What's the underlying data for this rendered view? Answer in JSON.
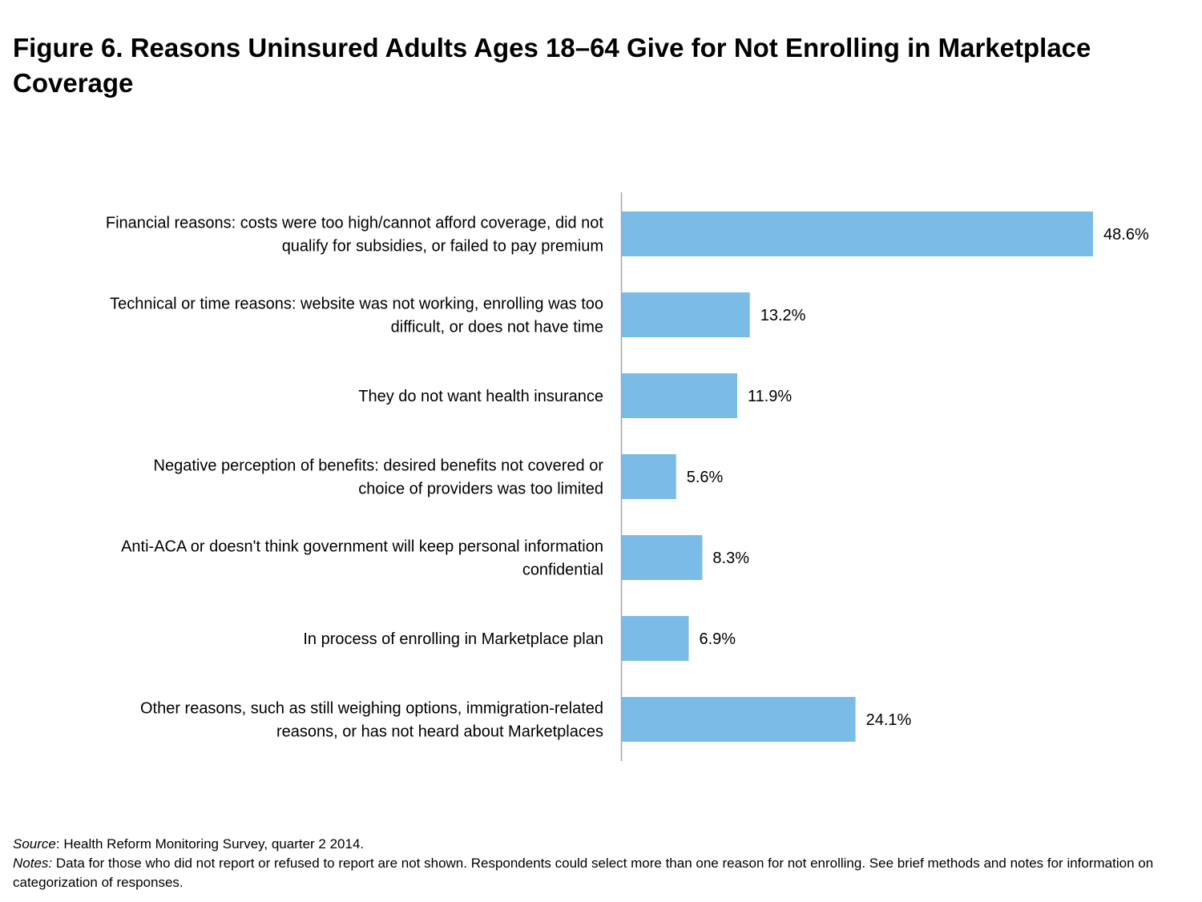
{
  "chart_data": {
    "type": "bar",
    "orientation": "horizontal",
    "title": "Figure 6. Reasons Uninsured Adults Ages 18–64 Give for Not Enrolling in Marketplace Coverage",
    "categories": [
      [
        "Financial reasons: costs were too high/cannot afford coverage, did not",
        "qualify for subsidies, or failed to pay premium"
      ],
      [
        "Technical or time reasons: website was not working, enrolling was too",
        "difficult, or does not have time"
      ],
      [
        "They do not want health insurance"
      ],
      [
        "Negative perception of benefits: desired benefits not covered or",
        "choice of providers was too limited"
      ],
      [
        "Anti-ACA or doesn't think government will keep personal information",
        "confidential"
      ],
      [
        "In process of enrolling in Marketplace plan"
      ],
      [
        "Other reasons, such as still weighing options, immigration-related",
        "reasons, or has not heard about Marketplaces"
      ]
    ],
    "values": [
      48.6,
      13.2,
      11.9,
      5.6,
      8.3,
      6.9,
      24.1
    ],
    "value_labels": [
      "48.6%",
      "13.2%",
      "11.9%",
      "5.6%",
      "8.3%",
      "6.9%",
      "24.1%"
    ],
    "xlim": [
      0,
      50
    ],
    "bar_color": "#7bbce6",
    "grid": false,
    "legend": "none"
  },
  "footer": {
    "source_label": "Source",
    "source_text": ": Health Reform Monitoring Survey, quarter 2 2014.",
    "notes_label": "Notes:",
    "notes_text": " Data for those who did not report or refused to report are not shown.  Respondents could select more than one reason for not enrolling.  See brief methods and notes for information on categorization of responses."
  }
}
